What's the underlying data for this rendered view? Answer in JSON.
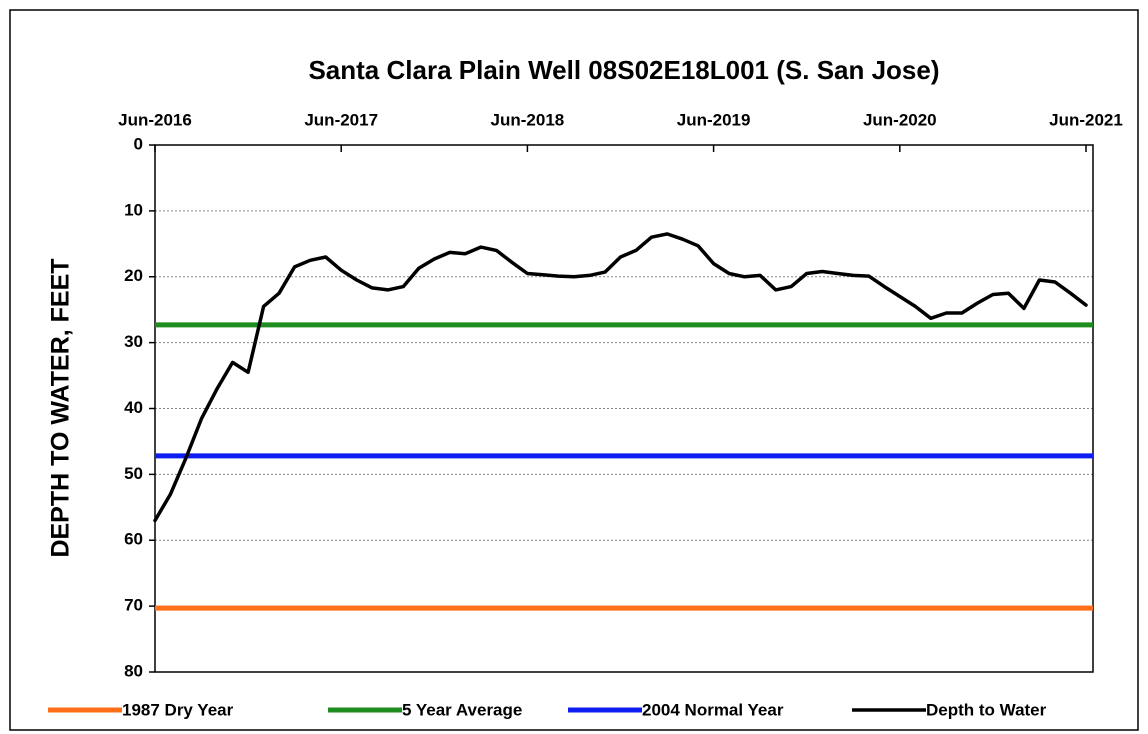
{
  "chart_data": {
    "type": "line",
    "title": "Santa Clara Plain Well 08S02E18L001 (S. San Jose)",
    "y_label": "DEPTH TO WATER, FEET",
    "y_inverted": true,
    "grid": true,
    "legend": "bottom",
    "ylim": [
      0,
      80
    ],
    "yticks": [
      0,
      10,
      20,
      30,
      40,
      50,
      60,
      70,
      80
    ],
    "xlim": [
      "2016-06",
      "2021-06"
    ],
    "xticks": [
      {
        "value": "2016-06",
        "label": "Jun-2016"
      },
      {
        "value": "2017-06",
        "label": "Jun-2017"
      },
      {
        "value": "2018-06",
        "label": "Jun-2018"
      },
      {
        "value": "2019-06",
        "label": "Jun-2019"
      },
      {
        "value": "2020-06",
        "label": "Jun-2020"
      },
      {
        "value": "2021-06",
        "label": "Jun-2021"
      }
    ],
    "x": [
      "2016-06",
      "2016-07",
      "2016-08",
      "2016-09",
      "2016-10",
      "2016-11",
      "2016-12",
      "2017-01",
      "2017-02",
      "2017-03",
      "2017-04",
      "2017-05",
      "2017-06",
      "2017-07",
      "2017-08",
      "2017-09",
      "2017-10",
      "2017-11",
      "2017-12",
      "2018-01",
      "2018-02",
      "2018-03",
      "2018-04",
      "2018-05",
      "2018-06",
      "2018-07",
      "2018-08",
      "2018-09",
      "2018-10",
      "2018-11",
      "2018-12",
      "2019-01",
      "2019-02",
      "2019-03",
      "2019-04",
      "2019-05",
      "2019-06",
      "2019-07",
      "2019-08",
      "2019-09",
      "2019-10",
      "2019-11",
      "2019-12",
      "2020-01",
      "2020-02",
      "2020-03",
      "2020-04",
      "2020-05",
      "2020-06",
      "2020-07",
      "2020-08",
      "2020-09",
      "2020-10",
      "2020-11",
      "2020-12",
      "2021-01",
      "2021-02",
      "2021-03",
      "2021-04",
      "2021-05",
      "2021-06"
    ],
    "series": [
      {
        "name": "1987 Dry Year",
        "color": "#ff6f1a",
        "value": 70.3
      },
      {
        "name": "5 Year Average",
        "color": "#1e8c1e",
        "value": 27.3
      },
      {
        "name": "2004 Normal Year",
        "color": "#0f1ef0",
        "value": 47.2
      },
      {
        "name": "Depth to Water",
        "color": "#000000",
        "values": [
          57,
          53,
          47.5,
          41.5,
          37,
          33,
          34.5,
          24.5,
          22.5,
          18.5,
          17.5,
          17,
          19,
          20.5,
          21.7,
          22,
          21.5,
          18.7,
          17.3,
          16.3,
          16.5,
          15.5,
          16,
          17.8,
          19.5,
          19.7,
          19.9,
          20,
          19.8,
          19.3,
          17,
          16,
          14,
          13.5,
          14.3,
          15.3,
          18,
          19.5,
          20,
          19.8,
          22,
          21.5,
          19.5,
          19.2,
          19.5,
          19.8,
          19.9,
          21.5,
          23,
          24.5,
          26.3,
          25.5,
          25.5,
          24,
          22.7,
          22.5,
          24.8,
          20.5,
          20.8,
          22.5,
          24.3
        ]
      }
    ]
  }
}
